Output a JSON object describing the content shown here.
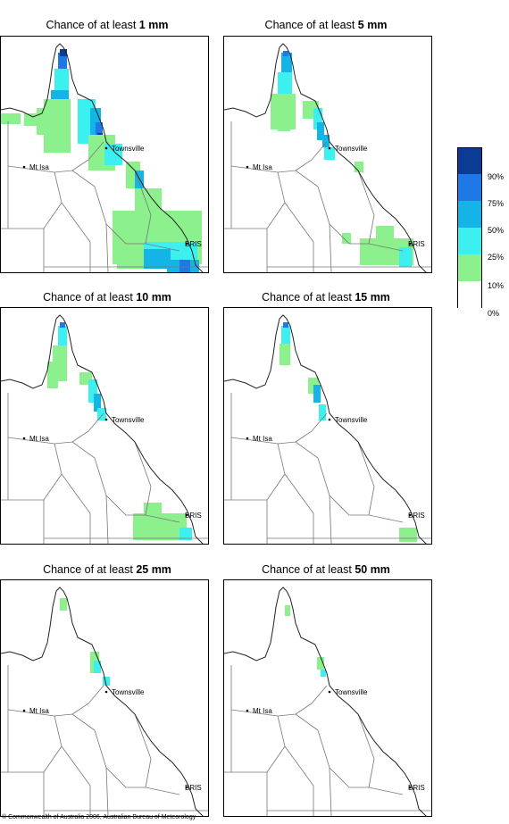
{
  "panels": [
    {
      "prefix": "Chance of at least ",
      "amount": "1 mm"
    },
    {
      "prefix": "Chance of at least ",
      "amount": "5 mm"
    },
    {
      "prefix": "Chance of at least ",
      "amount": "10 mm"
    },
    {
      "prefix": "Chance of at least ",
      "amount": "15 mm"
    },
    {
      "prefix": "Chance of at least ",
      "amount": "25 mm"
    },
    {
      "prefix": "Chance of at least ",
      "amount": "50 mm"
    }
  ],
  "places": {
    "townsville": "Townsville",
    "mt_isa": "Mt Isa",
    "bris": "BRIS"
  },
  "legend": {
    "labels": [
      "90%",
      "75%",
      "50%",
      "25%",
      "10%",
      "0%"
    ],
    "colors": [
      "#0a3c96",
      "#1e78e6",
      "#14b4e6",
      "#3cf0f0",
      "#8cf08c",
      "#ffffff"
    ]
  },
  "copyright": "© Commonwealth of Australia 2006, Australian Bureau of Meteorology"
}
